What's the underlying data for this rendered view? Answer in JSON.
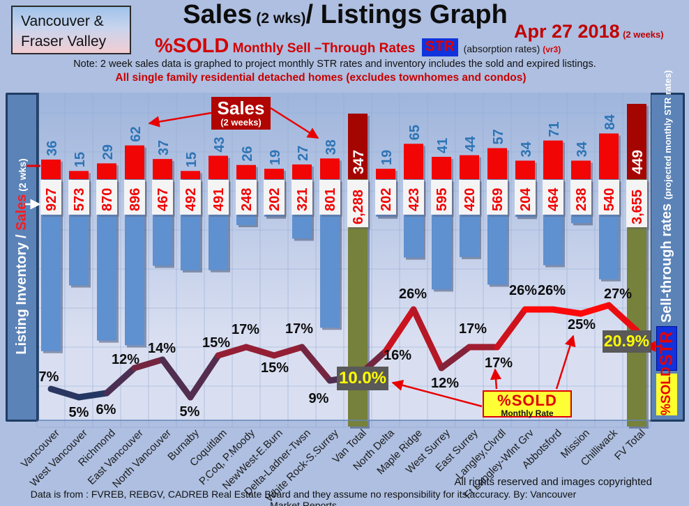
{
  "header": {
    "region_line1": "Vancouver &",
    "region_line2": "Fraser Valley",
    "title_main": "Sales",
    "title_paren": " (2 wks)",
    "title_rest": "/ Listings Graph",
    "date": "Apr 27 2018",
    "date_note": "(2 weeks)",
    "sub_pct": "%SOLD",
    "sub_mid": " Monthly Sell –Through Rates ",
    "sub_str": "STR",
    "sub_abs": " (absorption rates) ",
    "sub_ver": "(vr3)",
    "note": "Note: 2 week sales data is graphed to project monthly STR rates and inventory includes the sold and expired listings.",
    "subnote": "All single family residential detached homes (excludes townhomes and condos)"
  },
  "axes": {
    "left_1": "Listing Inventory / ",
    "left_sales": "Sales",
    "left_wks": " (2  wks)",
    "right_1": "Sell-through rates ",
    "right_2": " (projected monthly STR rates)",
    "str_badge": "STR",
    "pct_badge": "%SOLD"
  },
  "callouts": {
    "sales_line1": "Sales",
    "sales_line2": "(2 weeks)",
    "pct_line1": "%SOLD",
    "pct_line2": "Monthly Rate",
    "van_rate": "10.0%",
    "fv_rate": "20.9%"
  },
  "footer": {
    "rights": "All rights reserved and  images copyrighted",
    "source": "Data is from : FVREB, REBGV, CADREB Real Estate Board and they assume no responsibility for its accuracy. By: Vancouver Market Reports"
  },
  "colors": {
    "bar_red": "#f20505",
    "bar_red_shadow": "rgba(70,70,95,0.40)",
    "bar_total_red": "#a50500",
    "bar_blue": "#5f90cf",
    "bar_blue_shadow": "rgba(40,55,90,0.45)",
    "bar_olive": "#76813b",
    "strip_white": "#f4f4f4",
    "num_blue": "#2e74b5",
    "num_red": "#f20000",
    "line_low_rgb": [
      31,
      56,
      100
    ],
    "line_high_rgb": [
      255,
      8,
      8
    ],
    "grid": "#8fa9d2",
    "plot_top": "#9fb5dc",
    "plot_bottom": "#d9dff1",
    "arrow_red": "#e80000",
    "arrow_white": "#ffffff"
  },
  "chart_data": {
    "type": "bar+line combo (sales bars up, inventory bars down, % sell-through line)",
    "title": "Sales (2 wks)/ Listings Graph",
    "date": "Apr 27 2018 (2 weeks)",
    "categories": [
      "Vancouver",
      "West Vancouver",
      "Richmond",
      "East Vancouver",
      "North Vancouver",
      "Burnaby",
      "Coquitlam",
      "P.Coq, P.Moody",
      "NewWest-E.Burn",
      "Delta-Ladner-Twsn",
      "White Rock-S.Surrey",
      "Van Total",
      "North Delta",
      "Maple Ridge",
      "West Surrey",
      "East Surrey",
      "Langley,Clvrdl",
      "Ft Langley-Wlnt Grv",
      "Abbotsford",
      "Mission",
      "Chilliwack",
      "FV Total"
    ],
    "series": [
      {
        "name": "Sales (2 weeks)",
        "values": [
          36,
          15,
          29,
          62,
          37,
          15,
          43,
          26,
          19,
          27,
          38,
          347,
          19,
          65,
          41,
          44,
          57,
          34,
          71,
          34,
          84,
          449
        ]
      },
      {
        "name": "Listing Inventory",
        "values": [
          927,
          573,
          870,
          896,
          467,
          492,
          491,
          248,
          202,
          321,
          801,
          6288,
          202,
          423,
          595,
          420,
          569,
          204,
          464,
          238,
          540,
          3655
        ]
      },
      {
        "name": "%SOLD Monthly Sell-Through Rate",
        "values": [
          7,
          5,
          6,
          12,
          14,
          5,
          15,
          17,
          15,
          17,
          9,
          10.0,
          16,
          26,
          12,
          17,
          17,
          26,
          26,
          25,
          27,
          20.9
        ]
      }
    ],
    "inventory_display": [
      "927",
      "573",
      "870",
      "896",
      "467",
      "492",
      "491",
      "248",
      "202",
      "321",
      "801",
      "6,288",
      "202",
      "423",
      "595",
      "420",
      "569",
      "204",
      "464",
      "238",
      "540",
      "3,655"
    ],
    "sales_display": [
      "36",
      "15",
      "29",
      "62",
      "37",
      "15",
      "43",
      "26",
      "19",
      "27",
      "38",
      "347",
      "19",
      "65",
      "41",
      "44",
      "57",
      "34",
      "71",
      "34",
      "84",
      "449"
    ],
    "pct_labels": [
      "7%",
      "5%",
      "6%",
      "12%",
      "14%",
      "5%",
      "15%",
      "17%",
      "15%",
      "17%",
      "9%",
      "10.0%",
      "16%",
      "26%",
      "12%",
      "17%",
      "17%",
      "26%",
      "26%",
      "25%",
      "27%",
      "20.9%"
    ],
    "totals_index": [
      11,
      21
    ],
    "legend_position": "none",
    "grid": true
  }
}
